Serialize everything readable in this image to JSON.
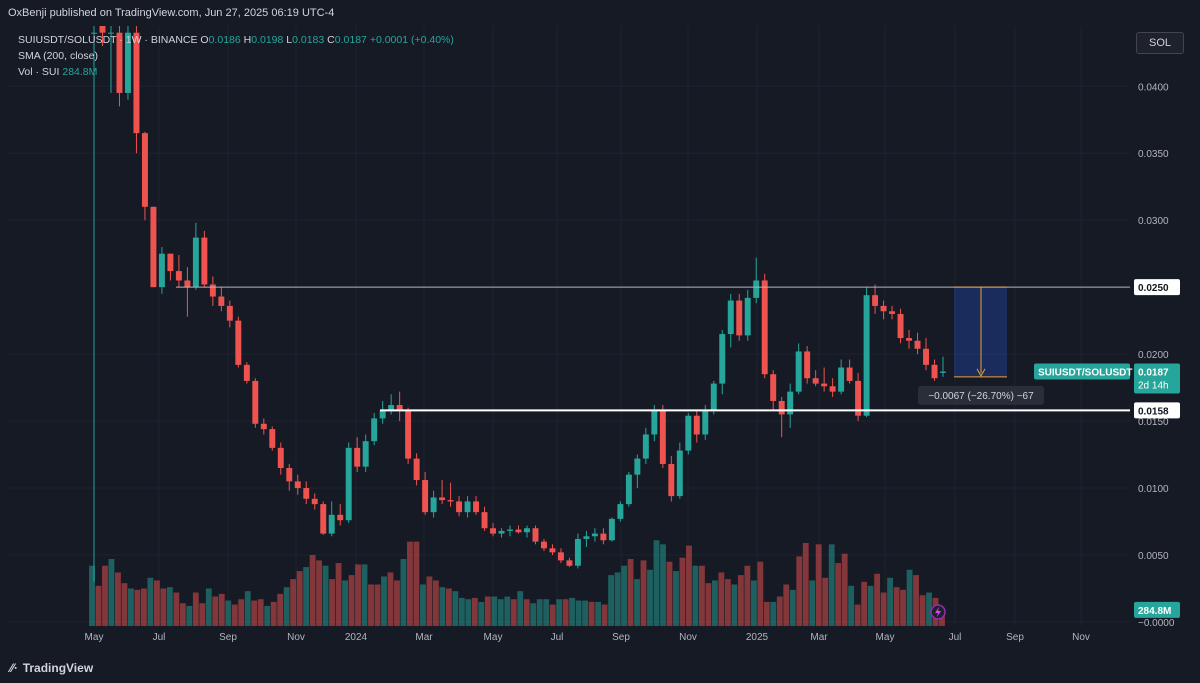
{
  "header": {
    "publisher": "OxBenji published on TradingView.com, Jun 27, 2025 06:19 UTC-4"
  },
  "legend": {
    "symbol_line": "SUIUSDT/SOLUSDT · 1W · BINANCE",
    "o_label": "O",
    "o_value": "0.0186",
    "h_label": "H",
    "h_value": "0.0198",
    "l_label": "L",
    "l_value": "0.0183",
    "c_label": "C",
    "c_value": "0.0187",
    "change": "+0.0001 (+0.40%)",
    "sma_line": "SMA (200, close)",
    "vol_label": "Vol · SUI",
    "vol_value": "284.8M"
  },
  "toolbar": {
    "currency_label": "SOL"
  },
  "footer": {
    "brand": "TradingView"
  },
  "chart_data": {
    "type": "candlestick",
    "symbol": "SUIUSDT/SOLUSDT",
    "interval": "1W",
    "exchange": "BINANCE",
    "y_axis": {
      "ticks": [
        "0.0400",
        "0.0350",
        "0.0300",
        "0.0200",
        "0.0150",
        "0.0100",
        "0.0050",
        "−0.0000"
      ],
      "tick_values": [
        0.04,
        0.035,
        0.03,
        0.02,
        0.015,
        0.01,
        0.005,
        0.0
      ],
      "range": [
        -0.0003,
        0.0445
      ]
    },
    "x_axis": {
      "ticks": [
        "May",
        "Jul",
        "Sep",
        "Nov",
        "2024",
        "Mar",
        "May",
        "Jul",
        "Sep",
        "Nov",
        "2025",
        "Mar",
        "May",
        "Jul",
        "Sep",
        "Nov"
      ]
    },
    "horizontal_lines": [
      {
        "value": 0.025,
        "label": "0.0250",
        "color": "#b2b5be"
      },
      {
        "value": 0.0158,
        "label": "0.0158",
        "color": "#ffffff"
      }
    ],
    "last_price": {
      "label": "SUIUSDT/SOLUSDT",
      "value": "0.0187",
      "countdown": "2d 14h",
      "color": "#26a69a"
    },
    "volume_badge": {
      "value": "284.8M"
    },
    "measure": {
      "from": 0.025,
      "to": 0.0183,
      "label": "−0.0067 (−26.70%) −67"
    },
    "candles": [
      {
        "o": 0.044,
        "h": 0.0445,
        "l": 0.003,
        "c": 0.044
      },
      {
        "o": 0.0445,
        "h": 0.0445,
        "l": 0.043,
        "c": 0.044
      },
      {
        "o": 0.044,
        "h": 0.0445,
        "l": 0.0395,
        "c": 0.044
      },
      {
        "o": 0.044,
        "h": 0.0445,
        "l": 0.0385,
        "c": 0.0395
      },
      {
        "o": 0.0395,
        "h": 0.0445,
        "l": 0.039,
        "c": 0.044
      },
      {
        "o": 0.044,
        "h": 0.0445,
        "l": 0.035,
        "c": 0.0365
      },
      {
        "o": 0.0365,
        "h": 0.0366,
        "l": 0.03,
        "c": 0.031
      },
      {
        "o": 0.031,
        "h": 0.031,
        "l": 0.025,
        "c": 0.025
      },
      {
        "o": 0.025,
        "h": 0.028,
        "l": 0.0245,
        "c": 0.0275
      },
      {
        "o": 0.0275,
        "h": 0.0275,
        "l": 0.0255,
        "c": 0.0262
      },
      {
        "o": 0.0262,
        "h": 0.0274,
        "l": 0.025,
        "c": 0.0255
      },
      {
        "o": 0.0255,
        "h": 0.0265,
        "l": 0.0228,
        "c": 0.025
      },
      {
        "o": 0.025,
        "h": 0.0298,
        "l": 0.0248,
        "c": 0.0287
      },
      {
        "o": 0.0287,
        "h": 0.0292,
        "l": 0.025,
        "c": 0.0252
      },
      {
        "o": 0.0252,
        "h": 0.0258,
        "l": 0.0236,
        "c": 0.0243
      },
      {
        "o": 0.0243,
        "h": 0.025,
        "l": 0.0232,
        "c": 0.0236
      },
      {
        "o": 0.0236,
        "h": 0.024,
        "l": 0.022,
        "c": 0.0225
      },
      {
        "o": 0.0225,
        "h": 0.0228,
        "l": 0.019,
        "c": 0.0192
      },
      {
        "o": 0.0192,
        "h": 0.0194,
        "l": 0.0178,
        "c": 0.018
      },
      {
        "o": 0.018,
        "h": 0.0182,
        "l": 0.0145,
        "c": 0.0148
      },
      {
        "o": 0.0148,
        "h": 0.0152,
        "l": 0.014,
        "c": 0.0144
      },
      {
        "o": 0.0144,
        "h": 0.0146,
        "l": 0.0128,
        "c": 0.013
      },
      {
        "o": 0.013,
        "h": 0.0134,
        "l": 0.011,
        "c": 0.0115
      },
      {
        "o": 0.0115,
        "h": 0.0118,
        "l": 0.0098,
        "c": 0.0105
      },
      {
        "o": 0.0105,
        "h": 0.011,
        "l": 0.0095,
        "c": 0.01
      },
      {
        "o": 0.01,
        "h": 0.0105,
        "l": 0.0088,
        "c": 0.0092
      },
      {
        "o": 0.0092,
        "h": 0.0096,
        "l": 0.0084,
        "c": 0.0088
      },
      {
        "o": 0.0088,
        "h": 0.009,
        "l": 0.0065,
        "c": 0.0066
      },
      {
        "o": 0.0066,
        "h": 0.009,
        "l": 0.0064,
        "c": 0.008
      },
      {
        "o": 0.008,
        "h": 0.0088,
        "l": 0.0072,
        "c": 0.0076
      },
      {
        "o": 0.0076,
        "h": 0.0134,
        "l": 0.0074,
        "c": 0.013
      },
      {
        "o": 0.013,
        "h": 0.0138,
        "l": 0.0112,
        "c": 0.0116
      },
      {
        "o": 0.0116,
        "h": 0.014,
        "l": 0.0112,
        "c": 0.0135
      },
      {
        "o": 0.0135,
        "h": 0.0156,
        "l": 0.0132,
        "c": 0.0152
      },
      {
        "o": 0.0152,
        "h": 0.0165,
        "l": 0.0148,
        "c": 0.0158
      },
      {
        "o": 0.0158,
        "h": 0.017,
        "l": 0.0155,
        "c": 0.0162
      },
      {
        "o": 0.0162,
        "h": 0.0172,
        "l": 0.015,
        "c": 0.0158
      },
      {
        "o": 0.0158,
        "h": 0.016,
        "l": 0.0118,
        "c": 0.0122
      },
      {
        "o": 0.0122,
        "h": 0.0126,
        "l": 0.0102,
        "c": 0.0106
      },
      {
        "o": 0.0106,
        "h": 0.0112,
        "l": 0.008,
        "c": 0.0082
      },
      {
        "o": 0.0082,
        "h": 0.0098,
        "l": 0.0078,
        "c": 0.0093
      },
      {
        "o": 0.0093,
        "h": 0.0106,
        "l": 0.0088,
        "c": 0.0091
      },
      {
        "o": 0.0091,
        "h": 0.0104,
        "l": 0.0086,
        "c": 0.009
      },
      {
        "o": 0.009,
        "h": 0.0094,
        "l": 0.0079,
        "c": 0.0082
      },
      {
        "o": 0.0082,
        "h": 0.0094,
        "l": 0.0078,
        "c": 0.009
      },
      {
        "o": 0.009,
        "h": 0.0094,
        "l": 0.008,
        "c": 0.0082
      },
      {
        "o": 0.0082,
        "h": 0.0086,
        "l": 0.0068,
        "c": 0.007
      },
      {
        "o": 0.007,
        "h": 0.0074,
        "l": 0.0064,
        "c": 0.0066
      },
      {
        "o": 0.0066,
        "h": 0.007,
        "l": 0.0063,
        "c": 0.0068
      },
      {
        "o": 0.0068,
        "h": 0.0072,
        "l": 0.0064,
        "c": 0.0069
      },
      {
        "o": 0.0069,
        "h": 0.0072,
        "l": 0.0066,
        "c": 0.0067
      },
      {
        "o": 0.0067,
        "h": 0.0072,
        "l": 0.0063,
        "c": 0.007
      },
      {
        "o": 0.007,
        "h": 0.0072,
        "l": 0.0058,
        "c": 0.006
      },
      {
        "o": 0.006,
        "h": 0.0062,
        "l": 0.0053,
        "c": 0.0055
      },
      {
        "o": 0.0055,
        "h": 0.0058,
        "l": 0.005,
        "c": 0.0052
      },
      {
        "o": 0.0052,
        "h": 0.0055,
        "l": 0.0044,
        "c": 0.0046
      },
      {
        "o": 0.0046,
        "h": 0.0048,
        "l": 0.0041,
        "c": 0.0042
      },
      {
        "o": 0.0042,
        "h": 0.0066,
        "l": 0.004,
        "c": 0.0062
      },
      {
        "o": 0.0062,
        "h": 0.0068,
        "l": 0.0056,
        "c": 0.0064
      },
      {
        "o": 0.0064,
        "h": 0.007,
        "l": 0.006,
        "c": 0.0066
      },
      {
        "o": 0.0066,
        "h": 0.007,
        "l": 0.0058,
        "c": 0.0061
      },
      {
        "o": 0.0061,
        "h": 0.0078,
        "l": 0.006,
        "c": 0.0077
      },
      {
        "o": 0.0077,
        "h": 0.009,
        "l": 0.0075,
        "c": 0.0088
      },
      {
        "o": 0.0088,
        "h": 0.0112,
        "l": 0.0086,
        "c": 0.011
      },
      {
        "o": 0.011,
        "h": 0.0125,
        "l": 0.01,
        "c": 0.0122
      },
      {
        "o": 0.0122,
        "h": 0.0145,
        "l": 0.0118,
        "c": 0.014
      },
      {
        "o": 0.014,
        "h": 0.0162,
        "l": 0.0135,
        "c": 0.0158
      },
      {
        "o": 0.0158,
        "h": 0.0162,
        "l": 0.0115,
        "c": 0.0118
      },
      {
        "o": 0.0118,
        "h": 0.0124,
        "l": 0.009,
        "c": 0.0094
      },
      {
        "o": 0.0094,
        "h": 0.0134,
        "l": 0.0092,
        "c": 0.0128
      },
      {
        "o": 0.0128,
        "h": 0.0156,
        "l": 0.0125,
        "c": 0.0154
      },
      {
        "o": 0.0154,
        "h": 0.0158,
        "l": 0.0134,
        "c": 0.014
      },
      {
        "o": 0.014,
        "h": 0.0162,
        "l": 0.0136,
        "c": 0.0158
      },
      {
        "o": 0.0158,
        "h": 0.018,
        "l": 0.0155,
        "c": 0.0178
      },
      {
        "o": 0.0178,
        "h": 0.0218,
        "l": 0.017,
        "c": 0.0215
      },
      {
        "o": 0.0215,
        "h": 0.0245,
        "l": 0.0205,
        "c": 0.024
      },
      {
        "o": 0.024,
        "h": 0.0245,
        "l": 0.021,
        "c": 0.0214
      },
      {
        "o": 0.0214,
        "h": 0.0248,
        "l": 0.021,
        "c": 0.0242
      },
      {
        "o": 0.0242,
        "h": 0.0272,
        "l": 0.0238,
        "c": 0.0255
      },
      {
        "o": 0.0255,
        "h": 0.026,
        "l": 0.0182,
        "c": 0.0185
      },
      {
        "o": 0.0185,
        "h": 0.0188,
        "l": 0.0158,
        "c": 0.0165
      },
      {
        "o": 0.0165,
        "h": 0.0168,
        "l": 0.0138,
        "c": 0.0155
      },
      {
        "o": 0.0155,
        "h": 0.0178,
        "l": 0.0145,
        "c": 0.0172
      },
      {
        "o": 0.0172,
        "h": 0.0208,
        "l": 0.017,
        "c": 0.0202
      },
      {
        "o": 0.0202,
        "h": 0.0206,
        "l": 0.0178,
        "c": 0.0182
      },
      {
        "o": 0.0182,
        "h": 0.0188,
        "l": 0.0176,
        "c": 0.0178
      },
      {
        "o": 0.0178,
        "h": 0.019,
        "l": 0.0172,
        "c": 0.0176
      },
      {
        "o": 0.0176,
        "h": 0.0182,
        "l": 0.0168,
        "c": 0.0172
      },
      {
        "o": 0.0172,
        "h": 0.0196,
        "l": 0.017,
        "c": 0.019
      },
      {
        "o": 0.019,
        "h": 0.0196,
        "l": 0.0178,
        "c": 0.018
      },
      {
        "o": 0.018,
        "h": 0.0186,
        "l": 0.015,
        "c": 0.0154
      },
      {
        "o": 0.0154,
        "h": 0.025,
        "l": 0.0153,
        "c": 0.0244
      },
      {
        "o": 0.0244,
        "h": 0.0252,
        "l": 0.023,
        "c": 0.0236
      },
      {
        "o": 0.0236,
        "h": 0.024,
        "l": 0.0226,
        "c": 0.0232
      },
      {
        "o": 0.0232,
        "h": 0.0236,
        "l": 0.0226,
        "c": 0.023
      },
      {
        "o": 0.023,
        "h": 0.0234,
        "l": 0.0208,
        "c": 0.0212
      },
      {
        "o": 0.0212,
        "h": 0.0218,
        "l": 0.0204,
        "c": 0.021
      },
      {
        "o": 0.021,
        "h": 0.0216,
        "l": 0.02,
        "c": 0.0204
      },
      {
        "o": 0.0204,
        "h": 0.0212,
        "l": 0.0188,
        "c": 0.0192
      },
      {
        "o": 0.0192,
        "h": 0.0196,
        "l": 0.018,
        "c": 0.0182
      },
      {
        "o": 0.0186,
        "h": 0.0198,
        "l": 0.0183,
        "c": 0.0187
      }
    ],
    "volumes": [
      0.0045,
      0.003,
      0.0045,
      0.005,
      0.004,
      0.0032,
      0.0028,
      0.0027,
      0.0028,
      0.0036,
      0.0034,
      0.0028,
      0.0029,
      0.0025,
      0.0017,
      0.0015,
      0.0025,
      0.0017,
      0.0028,
      0.0022,
      0.0024,
      0.0019,
      0.0016,
      0.002,
      0.0026,
      0.0019,
      0.002,
      0.0015,
      0.0018,
      0.0024,
      0.0029,
      0.0035,
      0.0041,
      0.0044,
      0.0053,
      0.0049,
      0.0045,
      0.0035,
      0.0047,
      0.0034,
      0.0038,
      0.0046,
      0.0046,
      0.0031,
      0.0031,
      0.0037,
      0.004,
      0.0034,
      0.005,
      0.0063,
      0.0063,
      0.0031,
      0.0037,
      0.0034,
      0.0029,
      0.0028,
      0.0026,
      0.0021,
      0.002,
      0.0021,
      0.0018,
      0.0022,
      0.0022,
      0.002,
      0.0022,
      0.002,
      0.0026,
      0.002,
      0.0017,
      0.002,
      0.002,
      0.0016,
      0.002,
      0.002,
      0.0021,
      0.0019,
      0.0019,
      0.0018,
      0.0018,
      0.0016,
      0.0038,
      0.004,
      0.0045,
      0.005,
      0.0035,
      0.0049,
      0.0042,
      0.0064,
      0.0061,
      0.0048,
      0.0041,
      0.0051,
      0.006,
      0.0045,
      0.0045,
      0.0032,
      0.0034,
      0.004,
      0.0035,
      0.0031,
      0.0038,
      0.0045,
      0.0034,
      0.0048,
      0.0018,
      0.0018,
      0.0022,
      0.0031,
      0.0027,
      0.0052,
      0.0062,
      0.0034,
      0.0061,
      0.0036,
      0.0061,
      0.0047,
      0.0054,
      0.003,
      0.0016,
      0.0033,
      0.003,
      0.0039,
      0.0025,
      0.0036,
      0.0029,
      0.0027,
      0.0042,
      0.0038,
      0.0023,
      0.0025,
      0.0021,
      0.0013
    ]
  }
}
